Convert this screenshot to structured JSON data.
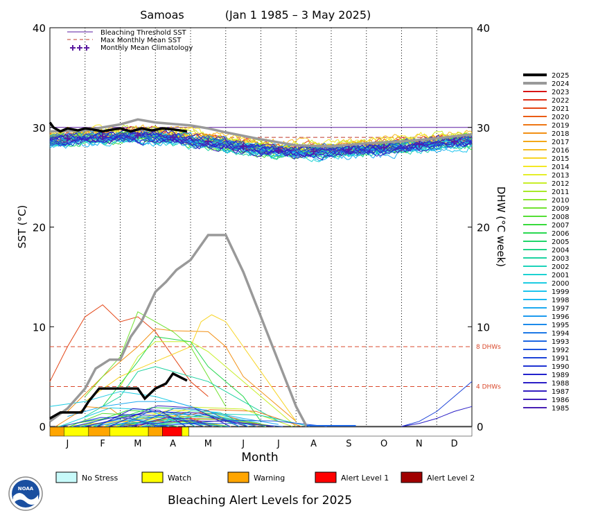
{
  "chart_data": {
    "type": "line",
    "title": "Samoas",
    "date_range": "(Jan 1 1985 – 3 May 2025)",
    "xlabel": "Month",
    "ylabel_left": "SST (°C)",
    "ylabel_right": "DHW (°C week)",
    "ylim": [
      0,
      40
    ],
    "y_ticks": [
      "0",
      "10",
      "20",
      "30",
      "40"
    ],
    "month_ticks": [
      "J",
      "F",
      "M",
      "A",
      "M",
      "J",
      "J",
      "A",
      "S",
      "O",
      "N",
      "D"
    ],
    "grid": "dotted vertical lines at month boundaries",
    "bleaching_threshold_sst": 30.0,
    "max_monthly_mean_sst": 29.0,
    "dhw_reference_lines": [
      {
        "value": 8,
        "label": "8 DHWs"
      },
      {
        "value": 4,
        "label": "4 DHWs"
      }
    ],
    "legend_top": [
      {
        "label": "Bleaching Threshold SST",
        "color": "#5a1aa0",
        "style": "solid"
      },
      {
        "label": "Max Monthly Mean SST",
        "color": "#c0392b",
        "style": "dashed"
      },
      {
        "label": "Monthly Mean Climatology",
        "color": "#5a1aa0",
        "style": "plus"
      }
    ],
    "climatology_monthly": [
      28.9,
      29.1,
      29.2,
      29.0,
      28.6,
      28.1,
      27.7,
      27.6,
      27.8,
      28.0,
      28.3,
      28.6
    ],
    "sst_2025": {
      "x_months": [
        0.0,
        0.1,
        0.3,
        0.5,
        0.8,
        1.0,
        1.2,
        1.5,
        1.8,
        2.0,
        2.3,
        2.6,
        2.9,
        3.2,
        3.5,
        3.9
      ],
      "values": [
        30.5,
        30.0,
        29.6,
        29.9,
        29.7,
        29.9,
        29.8,
        29.6,
        29.8,
        29.9,
        29.6,
        29.9,
        29.7,
        29.9,
        29.8,
        29.6
      ]
    },
    "sst_2024": {
      "x_months": [
        0.0,
        1.0,
        2.0,
        2.5,
        3.0,
        4.0,
        4.5,
        5.0,
        6.0,
        7.0,
        8.0,
        9.0,
        10.0,
        11.0,
        12.0
      ],
      "values": [
        29.6,
        29.7,
        30.3,
        30.8,
        30.5,
        30.2,
        29.9,
        29.5,
        28.8,
        28.2,
        28.1,
        28.4,
        28.6,
        28.9,
        29.3
      ]
    },
    "dhw_2025": {
      "x_months": [
        0.0,
        0.3,
        0.6,
        0.9,
        1.1,
        1.4,
        1.7,
        2.0,
        2.2,
        2.5,
        2.7,
        3.0,
        3.3,
        3.5,
        3.9
      ],
      "values": [
        0.8,
        1.4,
        1.4,
        1.4,
        2.5,
        3.8,
        3.8,
        3.8,
        3.8,
        3.8,
        2.8,
        3.8,
        4.3,
        5.3,
        4.6
      ]
    },
    "dhw_2024": {
      "x_months": [
        0.0,
        0.5,
        1.0,
        1.3,
        1.7,
        2.0,
        2.3,
        2.6,
        3.0,
        3.3,
        3.6,
        4.0,
        4.5,
        5.0,
        5.5,
        6.0,
        6.5,
        7.0,
        7.3
      ],
      "values": [
        0.5,
        1.8,
        3.8,
        5.8,
        6.7,
        6.7,
        9.0,
        10.5,
        13.5,
        14.5,
        15.7,
        16.7,
        19.2,
        19.2,
        15.5,
        11.0,
        6.5,
        2.0,
        0.0
      ]
    },
    "dhw_other_years": [
      {
        "x_months": [
          0.0,
          0.5,
          1.0,
          1.5,
          2.0,
          2.5,
          3.0,
          4.0,
          4.5
        ],
        "values": [
          4.5,
          8.0,
          11.0,
          12.2,
          10.5,
          11.0,
          9.5,
          4.5,
          3.0
        ]
      },
      {
        "x_months": [
          0.5,
          1.5,
          2.5,
          3.0,
          3.5,
          4.5,
          5.0,
          5.5,
          6.5,
          7.0
        ],
        "values": [
          1.5,
          5.0,
          8.0,
          9.8,
          9.6,
          9.5,
          8.0,
          5.0,
          2.0,
          0.5
        ]
      },
      {
        "x_months": [
          1.0,
          2.0,
          3.0,
          4.0,
          4.3,
          4.6,
          5.0,
          5.5,
          6.0,
          6.5,
          7.0
        ],
        "values": [
          2.5,
          5.0,
          6.5,
          8.0,
          10.5,
          11.2,
          10.5,
          8.0,
          5.5,
          3.0,
          0.5
        ]
      },
      {
        "x_months": [
          2.0,
          2.5,
          3.0,
          4.0,
          4.5,
          5.0,
          6.0,
          6.5,
          7.0
        ],
        "values": [
          4.0,
          7.0,
          8.5,
          8.5,
          7.5,
          6.0,
          3.0,
          1.5,
          0.0
        ]
      },
      {
        "x_months": [
          1.0,
          2.0,
          2.5,
          3.5,
          4.0,
          4.5,
          5.0
        ],
        "values": [
          3.0,
          7.0,
          11.5,
          9.5,
          8.0,
          5.0,
          2.0
        ]
      },
      {
        "x_months": [
          1.5,
          2.5,
          3.0,
          4.0,
          4.5,
          5.5,
          6.0
        ],
        "values": [
          2.0,
          6.5,
          9.0,
          8.5,
          6.0,
          3.0,
          0.5
        ]
      },
      {
        "x_months": [
          1.0,
          2.0,
          2.5,
          3.0,
          3.5,
          4.5,
          5.5,
          6.5
        ],
        "values": [
          1.0,
          3.0,
          5.5,
          6.0,
          5.5,
          4.5,
          2.5,
          0.5
        ]
      },
      {
        "x_months": [
          0.0,
          1.0,
          2.0,
          3.0,
          4.0,
          5.0,
          6.0
        ],
        "values": [
          2.0,
          2.5,
          3.5,
          3.0,
          2.0,
          1.0,
          0.3
        ]
      },
      {
        "x_months": [
          0.5,
          1.5,
          2.5,
          3.5,
          4.5,
          5.5,
          6.5
        ],
        "values": [
          1.0,
          2.0,
          2.5,
          2.5,
          1.5,
          0.8,
          0.2
        ]
      },
      {
        "x_months": [
          1.0,
          2.0,
          3.0,
          4.0,
          5.0,
          6.0
        ],
        "values": [
          0.5,
          1.0,
          1.5,
          1.2,
          0.6,
          0.1
        ]
      },
      {
        "x_months": [
          10.0,
          10.5,
          11.0,
          11.5,
          12.0
        ],
        "values": [
          0.0,
          0.5,
          1.5,
          3.0,
          4.5
        ]
      },
      {
        "x_months": [
          10.0,
          10.5,
          11.0,
          11.5,
          12.0
        ],
        "values": [
          0.0,
          0.3,
          0.8,
          1.5,
          2.0
        ]
      }
    ],
    "series_legend": [
      "2025",
      "2024",
      "2023",
      "2022",
      "2021",
      "2020",
      "2019",
      "2018",
      "2017",
      "2016",
      "2015",
      "2014",
      "2013",
      "2012",
      "2011",
      "2010",
      "2009",
      "2008",
      "2007",
      "2006",
      "2005",
      "2004",
      "2003",
      "2002",
      "2001",
      "2000",
      "1999",
      "1998",
      "1997",
      "1996",
      "1995",
      "1994",
      "1993",
      "1992",
      "1991",
      "1990",
      "1989",
      "1988",
      "1987",
      "1986",
      "1985"
    ],
    "series_colors": {
      "2025": "#000000",
      "2024": "#999999",
      "2023": "#d81414",
      "2022": "#de2b14",
      "2021": "#e44414",
      "2020": "#ea5c14",
      "2019": "#ee7614",
      "2018": "#f29014",
      "2017": "#f4a818",
      "2016": "#f6bc20",
      "2015": "#f8d424",
      "2014": "#f4e824",
      "2013": "#e4ee28",
      "2012": "#c8ee28",
      "2011": "#a8ea28",
      "2010": "#8ce62c",
      "2009": "#70e230",
      "2008": "#54de34",
      "2007": "#38da3c",
      "2006": "#28d850",
      "2005": "#20d66a",
      "2004": "#1ed486",
      "2003": "#1cd2a0",
      "2002": "#1cd2ba",
      "2001": "#1cd2d2",
      "2000": "#1ccce2",
      "1999": "#1cc4ee",
      "1998": "#1cb8f2",
      "1997": "#1caaf0",
      "1996": "#1c9aee",
      "1995": "#1c8aea",
      "1994": "#1c78e6",
      "1993": "#1c66e2",
      "1992": "#1c54de",
      "1991": "#1c42d8",
      "1990": "#1e32d2",
      "1989": "#2222cc",
      "1988": "#2a1ec6",
      "1987": "#341ec0",
      "1986": "#3e1eba",
      "1985": "#481eb4"
    },
    "alert_bar_2025": [
      {
        "level": "warning",
        "color": "#ffa500",
        "from_month": 0.0,
        "to_month": 0.4
      },
      {
        "level": "watch",
        "color": "#ffff00",
        "from_month": 0.4,
        "to_month": 1.1
      },
      {
        "level": "warning",
        "color": "#ffa500",
        "from_month": 1.1,
        "to_month": 1.7
      },
      {
        "level": "watch",
        "color": "#ffff00",
        "from_month": 1.7,
        "to_month": 2.8
      },
      {
        "level": "warning",
        "color": "#ffa500",
        "from_month": 2.8,
        "to_month": 3.2
      },
      {
        "level": "alert1",
        "color": "#ff0000",
        "from_month": 3.2,
        "to_month": 3.75
      },
      {
        "level": "watch",
        "color": "#ffff00",
        "from_month": 3.75,
        "to_month": 3.95
      }
    ]
  },
  "alert_legend": [
    {
      "label": "No Stress",
      "color": "#c8fafa"
    },
    {
      "label": "Watch",
      "color": "#ffff00"
    },
    {
      "label": "Warning",
      "color": "#ffa500"
    },
    {
      "label": "Alert Level 1",
      "color": "#ff0000"
    },
    {
      "label": "Alert Level 2",
      "color": "#a00000"
    }
  ],
  "footer_title": "Bleaching Alert Levels for 2025",
  "logo": {
    "text": "NOAA",
    "color": "#1a4fa0"
  }
}
